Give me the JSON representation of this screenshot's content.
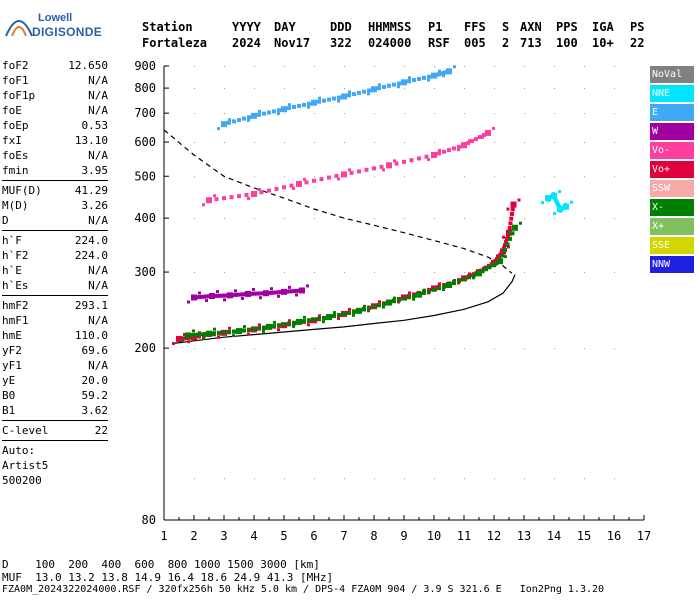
{
  "logo": {
    "line1": "Lowell",
    "line2": "DIGISONDE"
  },
  "header": {
    "row1": [
      "Station",
      "YYYY",
      "DAY",
      "DDD",
      "HHMMSS",
      "P1",
      "FFS",
      "S",
      "AXN",
      "PPS",
      "IGA",
      "PS"
    ],
    "row2": [
      "Fortaleza",
      "2024",
      "Nov17",
      "322",
      "024000",
      "RSF",
      "005",
      "2",
      "713",
      "100",
      "10+",
      "22"
    ]
  },
  "params": {
    "group1": [
      {
        "k": "foF2",
        "v": "12.650"
      },
      {
        "k": "foF1",
        "v": "N/A"
      },
      {
        "k": "foF1p",
        "v": "N/A"
      },
      {
        "k": "foE",
        "v": "N/A"
      },
      {
        "k": "foEp",
        "v": "0.53"
      },
      {
        "k": "fxI",
        "v": "13.10"
      },
      {
        "k": "foEs",
        "v": "N/A"
      },
      {
        "k": "fmin",
        "v": "3.95"
      }
    ],
    "group2": [
      {
        "k": "MUF(D)",
        "v": "41.29"
      },
      {
        "k": "M(D)",
        "v": "3.26"
      },
      {
        "k": "D",
        "v": "N/A"
      }
    ],
    "group3": [
      {
        "k": "h`F",
        "v": "224.0"
      },
      {
        "k": "h`F2",
        "v": "224.0"
      },
      {
        "k": "h`E",
        "v": "N/A"
      },
      {
        "k": "h`Es",
        "v": "N/A"
      }
    ],
    "group4": [
      {
        "k": "hmF2",
        "v": "293.1"
      },
      {
        "k": "hmF1",
        "v": "N/A"
      },
      {
        "k": "hmE",
        "v": "110.0"
      },
      {
        "k": "yF2",
        "v": "69.6"
      },
      {
        "k": "yF1",
        "v": "N/A"
      },
      {
        "k": "yE",
        "v": "20.0"
      },
      {
        "k": "B0",
        "v": "59.2"
      },
      {
        "k": "B1",
        "v": "3.62"
      }
    ],
    "group5": [
      {
        "k": "C-level",
        "v": "22"
      }
    ],
    "auto_label": "Auto:",
    "auto_value": "Artist5",
    "auto_code": "500200"
  },
  "legend": [
    {
      "label": "NoVal",
      "color": "#808080"
    },
    {
      "label": "NNE",
      "color": "#00e5ff"
    },
    {
      "label": "E",
      "color": "#3fa9f5"
    },
    {
      "label": "W",
      "color": "#a000a0"
    },
    {
      "label": "Vo-",
      "color": "#ff3fa0"
    },
    {
      "label": "Vo+",
      "color": "#e0003c"
    },
    {
      "label": "SSW",
      "color": "#f5a9a9"
    },
    {
      "label": "X-",
      "color": "#008000"
    },
    {
      "label": "X+",
      "color": "#80c060"
    },
    {
      "label": "SSE",
      "color": "#d4d400"
    },
    {
      "label": "NNW",
      "color": "#2020e0"
    }
  ],
  "footer": {
    "line1": "D    100  200  400  600  800 1000 1500 3000 [km]",
    "line2": "MUF  13.0 13.2 13.8 14.9 16.4 18.6 24.9 41.3 [MHz]",
    "line3": "FZA0M_2024322024000.RSF / 320fx256h 50 kHz 5.0 km / DPS-4 FZA0M 904 / 3.9 S 321.6 E   Ion2Png 1.3.20"
  },
  "chart_data": {
    "type": "scatter",
    "title": "",
    "xlabel": "",
    "ylabel": "",
    "xlim": [
      1,
      17
    ],
    "ylim": [
      80,
      900
    ],
    "x_ticks": [
      1,
      2,
      3,
      4,
      5,
      6,
      7,
      8,
      9,
      10,
      11,
      12,
      13,
      14,
      15,
      16,
      17
    ],
    "y_ticks": [
      80,
      200,
      300,
      400,
      500,
      600,
      700,
      800,
      900
    ],
    "y_scale": "log",
    "grid": false,
    "legend_position": "right",
    "series": [
      {
        "name": "Vo+",
        "x": [
          1.5,
          2.0,
          3.0,
          4.0,
          5.0,
          6.0,
          7.0,
          8.0,
          9.0,
          10.0,
          11.0,
          11.5,
          12.0,
          12.3,
          12.5,
          12.65
        ],
        "y": [
          210,
          212,
          217,
          221,
          226,
          232,
          240,
          250,
          262,
          275,
          290,
          300,
          315,
          335,
          370,
          430
        ]
      },
      {
        "name": "X-",
        "x": [
          1.8,
          2.5,
          3.5,
          4.5,
          5.5,
          6.5,
          7.5,
          8.5,
          9.5,
          10.5,
          11.5,
          12.2,
          12.7
        ],
        "y": [
          214,
          216,
          219,
          224,
          230,
          236,
          244,
          255,
          266,
          280,
          298,
          318,
          380
        ]
      },
      {
        "name": "W",
        "x": [
          2.0,
          2.6,
          3.2,
          3.8,
          4.4,
          5.0,
          5.6
        ],
        "y": [
          262,
          264,
          265,
          267,
          268,
          270,
          272
        ]
      },
      {
        "name": "Vo-",
        "x": [
          2.5,
          4.0,
          5.5,
          7.0,
          8.5,
          10.0,
          11.0,
          11.8
        ],
        "y": [
          440,
          455,
          480,
          505,
          530,
          560,
          590,
          630
        ]
      },
      {
        "name": "E",
        "x": [
          3.0,
          4.0,
          5.0,
          6.0,
          7.0,
          8.0,
          9.0,
          10.0,
          10.5
        ],
        "y": [
          660,
          690,
          715,
          740,
          765,
          795,
          825,
          855,
          875
        ]
      },
      {
        "name": "NNE",
        "x": [
          13.8,
          14.0,
          14.2,
          14.4
        ],
        "y": [
          445,
          450,
          420,
          425
        ]
      }
    ],
    "lines": [
      {
        "name": "",
        "style": "dashed",
        "x": [
          1.0,
          2.0,
          3.0,
          4.0,
          5.0,
          6.0,
          7.0,
          8.0,
          9.0,
          10.0,
          11.0,
          11.8,
          12.3,
          12.6
        ],
        "y": [
          640,
          560,
          500,
          470,
          445,
          420,
          400,
          385,
          370,
          355,
          340,
          325,
          310,
          298
        ]
      },
      {
        "name": "",
        "style": "solid",
        "x": [
          1.3,
          2.0,
          3.0,
          4.0,
          5.0,
          6.0,
          7.0,
          8.0,
          9.0,
          10.0,
          11.0,
          11.8,
          12.3,
          12.6,
          12.7
        ],
        "y": [
          205,
          208,
          212,
          215,
          218,
          221,
          224,
          228,
          232,
          238,
          246,
          256,
          268,
          285,
          296
        ]
      }
    ]
  }
}
